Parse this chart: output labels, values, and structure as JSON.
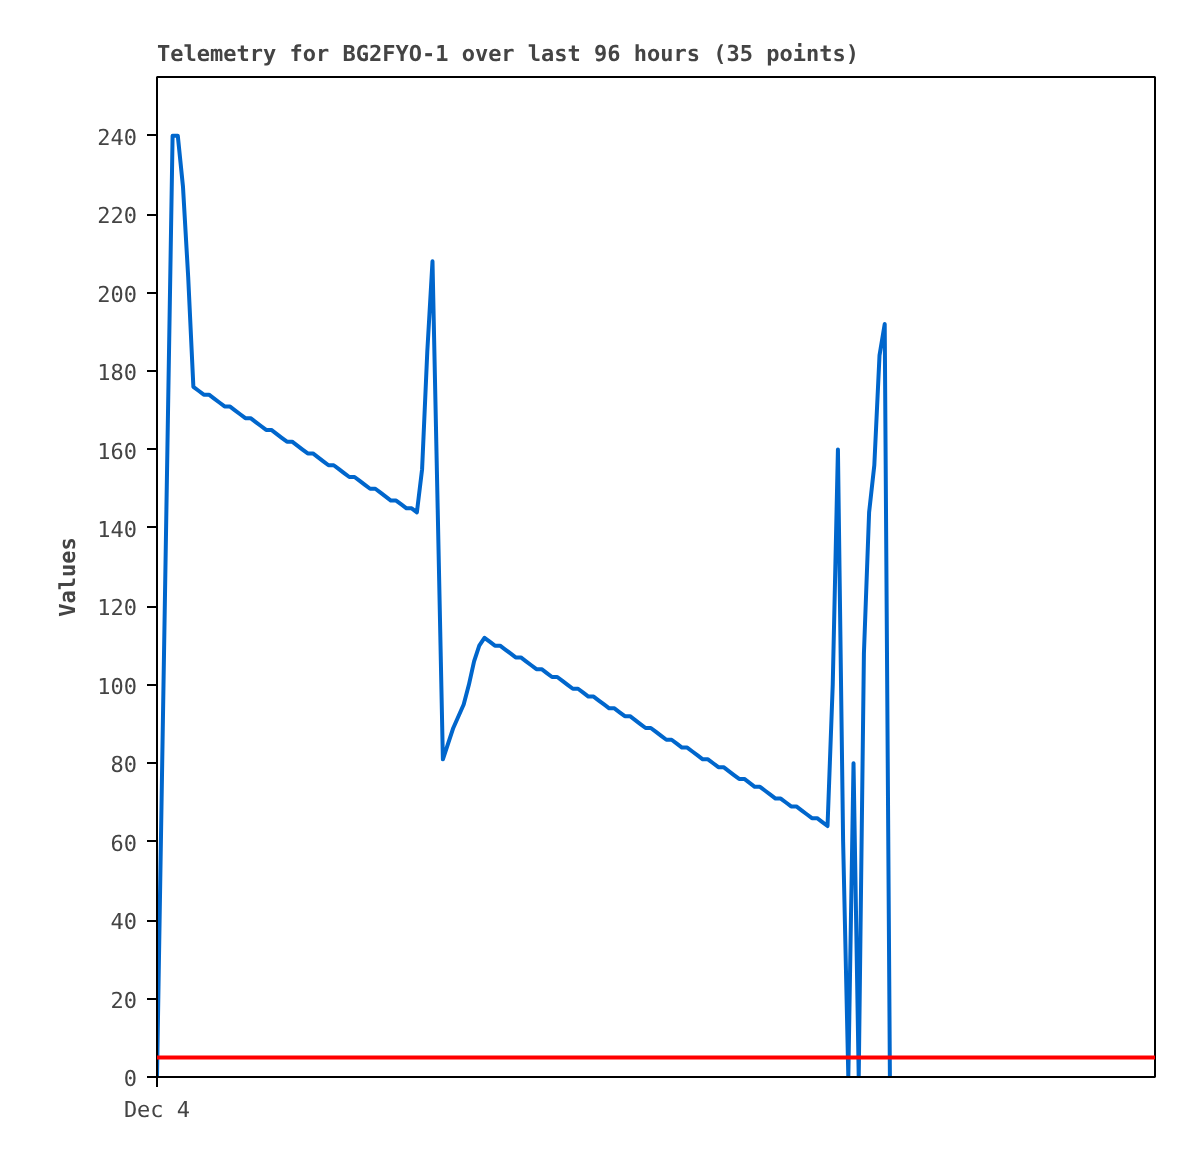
{
  "chart_data": {
    "type": "line",
    "title": "Telemetry for BG2FYO-1 over last 96 hours (35 points)",
    "ylabel": "Values",
    "categories": [
      "Dec 4",
      null,
      null,
      null,
      null,
      null,
      null,
      null,
      null,
      null,
      null,
      null,
      null,
      null,
      null,
      null,
      null,
      null,
      null,
      null,
      null,
      null,
      null,
      null,
      null,
      null,
      null,
      null,
      null,
      null,
      null,
      null,
      null,
      null,
      null,
      null,
      null,
      null,
      null,
      null,
      null,
      null,
      null,
      null,
      null,
      null,
      null,
      null,
      null,
      null,
      null,
      null,
      null,
      null,
      null,
      null,
      null,
      null,
      null,
      null,
      null,
      null,
      null,
      null,
      null,
      null,
      null,
      null,
      null,
      null,
      null,
      null,
      null,
      null,
      null,
      null,
      null,
      null,
      null,
      null,
      null,
      null,
      null,
      null,
      null,
      null,
      null,
      null,
      null,
      null,
      null,
      null,
      null,
      null,
      null,
      null,
      null,
      null,
      null,
      null,
      null,
      null,
      null,
      null,
      null,
      null,
      null,
      null,
      null,
      null,
      null,
      null,
      null,
      null,
      null,
      null,
      null,
      null,
      null,
      null,
      null,
      null,
      null,
      null,
      null,
      null,
      null,
      null,
      null,
      null,
      null,
      null,
      null,
      null,
      null,
      null,
      null,
      null,
      null,
      null,
      null,
      null,
      null,
      null,
      null,
      null,
      null,
      null,
      null,
      null,
      null,
      null,
      null,
      null,
      null,
      null,
      null,
      null,
      null,
      null,
      null,
      null,
      null,
      null,
      null,
      null,
      null,
      null,
      null,
      null,
      null,
      null,
      null,
      null,
      null,
      null,
      null,
      null,
      null,
      null,
      null,
      null,
      null,
      null,
      null,
      null,
      null,
      null,
      null,
      null,
      null,
      null,
      null
    ],
    "ylim": [
      0,
      255
    ],
    "yticks": [
      0,
      20,
      40,
      60,
      80,
      100,
      120,
      140,
      160,
      180,
      200,
      220,
      240
    ],
    "marker": "none",
    "line_style": "solid",
    "ref_lines": [
      {
        "axis": "y",
        "value": 5,
        "color": "#ff0000"
      }
    ],
    "series": [
      {
        "color": "#0066cc",
        "values": [
          0,
          80,
          160,
          240,
          240,
          227,
          204,
          176,
          175,
          174,
          174,
          173,
          172,
          171,
          171,
          170,
          169,
          168,
          168,
          167,
          166,
          165,
          165,
          164,
          163,
          162,
          162,
          161,
          160,
          159,
          159,
          158,
          157,
          156,
          156,
          155,
          154,
          153,
          153,
          152,
          151,
          150,
          150,
          149,
          148,
          147,
          147,
          146,
          145,
          145,
          144,
          155,
          185,
          208,
          145,
          81,
          85,
          89,
          92,
          95,
          100,
          106,
          110,
          112,
          111,
          110,
          110,
          109,
          108,
          107,
          107,
          106,
          105,
          104,
          104,
          103,
          102,
          102,
          101,
          100,
          99,
          99,
          98,
          97,
          97,
          96,
          95,
          94,
          94,
          93,
          92,
          92,
          91,
          90,
          89,
          89,
          88,
          87,
          86,
          86,
          85,
          84,
          84,
          83,
          82,
          81,
          81,
          80,
          79,
          79,
          78,
          77,
          76,
          76,
          75,
          74,
          74,
          73,
          72,
          71,
          71,
          70,
          69,
          69,
          68,
          67,
          66,
          66,
          65,
          64,
          100,
          160,
          60,
          0,
          80,
          0,
          108,
          144,
          156,
          184,
          192,
          0,
          null,
          null,
          null,
          null,
          null,
          null,
          null,
          null,
          null,
          null,
          null,
          null,
          null,
          null,
          null,
          null,
          null,
          null,
          null,
          null,
          null,
          null,
          null,
          null,
          null,
          null,
          null,
          null,
          null,
          null,
          null,
          null,
          null,
          null,
          null,
          null,
          null,
          null,
          null,
          null,
          null,
          null,
          null,
          null,
          null,
          null,
          null,
          null,
          null,
          null,
          null
        ]
      }
    ]
  }
}
